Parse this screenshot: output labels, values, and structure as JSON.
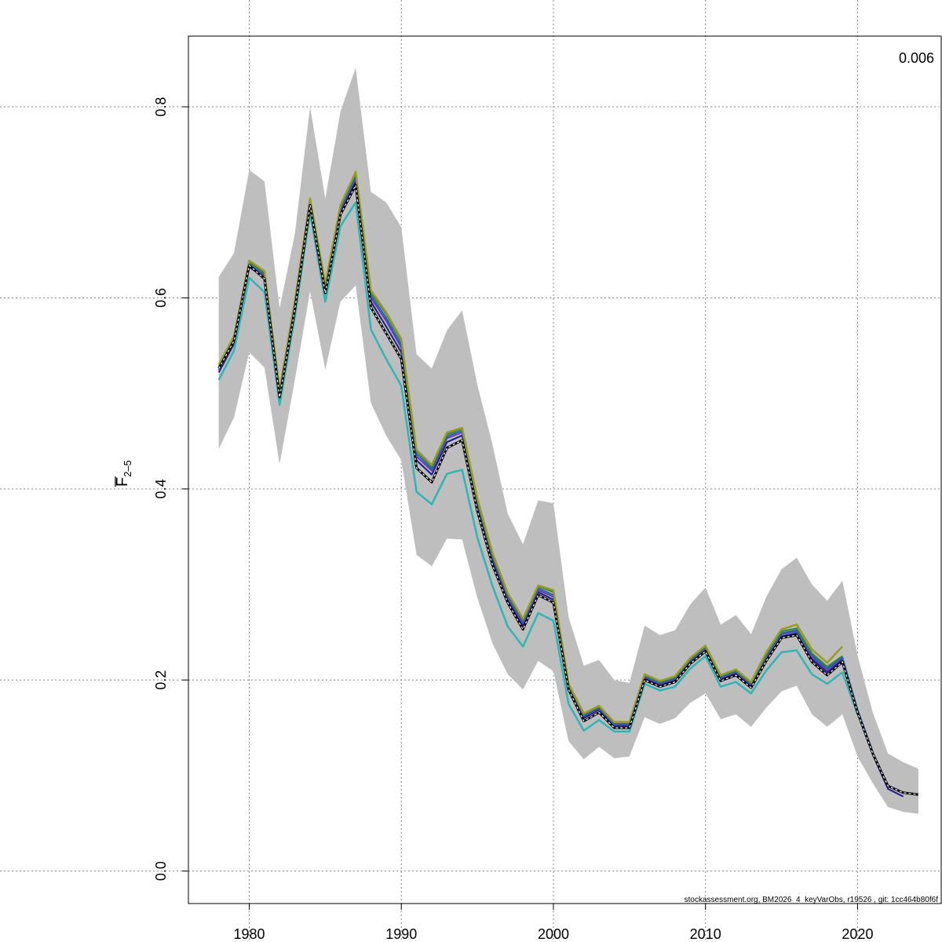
{
  "chart_data": {
    "type": "line",
    "title": "",
    "ylabel_main": "F",
    "ylabel_sub": "2–5",
    "corner_label": "0.006",
    "footnote": "stockassessment.org, BM2026_4_keyVarObs, r19526 , git: 1cc464b80f6f",
    "xlim": [
      1976,
      2025.5
    ],
    "ylim": [
      -0.034,
      0.874
    ],
    "x_ticks": [
      1980,
      1990,
      2000,
      2010,
      2020
    ],
    "y_ticks": [
      0.0,
      0.2,
      0.4,
      0.6,
      0.8
    ],
    "x_tick_labels": [
      "1980",
      "1990",
      "2000",
      "2010",
      "2020"
    ],
    "y_tick_labels": [
      "0.0",
      "0.2",
      "0.4",
      "0.6",
      "0.8"
    ],
    "grid": true,
    "colors": {
      "band": "#bebebe",
      "main": "#000000",
      "grid": "#888888"
    },
    "confidence_band": {
      "years": [
        1978,
        1979,
        1980,
        1981,
        1982,
        1983,
        1984,
        1985,
        1986,
        1987,
        1988,
        1989,
        1990,
        1991,
        1992,
        1993,
        1994,
        1995,
        1996,
        1997,
        1998,
        1999,
        2000,
        2001,
        2002,
        2003,
        2004,
        2005,
        2006,
        2007,
        2008,
        2009,
        2010,
        2011,
        2012,
        2013,
        2014,
        2015,
        2016,
        2017,
        2018,
        2019,
        2020,
        2021,
        2022,
        2023,
        2024
      ],
      "upper": [
        0.622,
        0.647,
        0.734,
        0.722,
        0.589,
        0.667,
        0.8,
        0.704,
        0.795,
        0.841,
        0.711,
        0.7,
        0.674,
        0.541,
        0.526,
        0.566,
        0.587,
        0.509,
        0.446,
        0.374,
        0.342,
        0.388,
        0.385,
        0.266,
        0.215,
        0.221,
        0.2,
        0.197,
        0.257,
        0.247,
        0.252,
        0.279,
        0.297,
        0.258,
        0.268,
        0.248,
        0.287,
        0.316,
        0.328,
        0.3,
        0.283,
        0.304,
        0.226,
        0.166,
        0.123,
        0.114,
        0.107
      ],
      "lower": [
        0.442,
        0.475,
        0.543,
        0.527,
        0.426,
        0.514,
        0.607,
        0.525,
        0.596,
        0.613,
        0.49,
        0.456,
        0.43,
        0.331,
        0.319,
        0.348,
        0.347,
        0.286,
        0.238,
        0.206,
        0.19,
        0.22,
        0.209,
        0.136,
        0.117,
        0.13,
        0.118,
        0.12,
        0.161,
        0.154,
        0.16,
        0.176,
        0.186,
        0.159,
        0.164,
        0.151,
        0.171,
        0.188,
        0.194,
        0.164,
        0.151,
        0.164,
        0.12,
        0.092,
        0.067,
        0.062,
        0.06
      ]
    },
    "series": [
      {
        "key": "main",
        "color": "#000000",
        "width": 3,
        "years": [
          1978,
          1979,
          1980,
          1981,
          1982,
          1983,
          1984,
          1985,
          1986,
          1987,
          1988,
          1989,
          1990,
          1991,
          1992,
          1993,
          1994,
          1995,
          1996,
          1997,
          1998,
          1999,
          2000,
          2001,
          2002,
          2003,
          2004,
          2005,
          2006,
          2007,
          2008,
          2009,
          2010,
          2011,
          2012,
          2013,
          2014,
          2015,
          2016,
          2017,
          2018,
          2019,
          2020,
          2021,
          2022,
          2023,
          2024
        ],
        "values": [
          0.526,
          0.555,
          0.634,
          0.62,
          0.496,
          0.588,
          0.697,
          0.605,
          0.687,
          0.718,
          0.59,
          0.563,
          0.536,
          0.422,
          0.407,
          0.443,
          0.451,
          0.377,
          0.32,
          0.281,
          0.253,
          0.289,
          0.281,
          0.19,
          0.157,
          0.166,
          0.15,
          0.15,
          0.2,
          0.193,
          0.198,
          0.217,
          0.23,
          0.199,
          0.205,
          0.192,
          0.22,
          0.244,
          0.247,
          0.219,
          0.205,
          0.219,
          0.166,
          0.123,
          0.089,
          0.082,
          0.08
        ]
      },
      {
        "key": "r1",
        "color": "#1a1a8c",
        "width": 2,
        "years": [
          1978,
          1979,
          1980,
          1981,
          1982,
          1983,
          1984,
          1985,
          1986,
          1987,
          1988,
          1989,
          1990,
          1991,
          1992,
          1993,
          1994,
          1995,
          1996,
          1997,
          1998,
          1999,
          2000,
          2001,
          2002,
          2003,
          2004,
          2005,
          2006,
          2007,
          2008,
          2009,
          2010,
          2011,
          2012,
          2013,
          2014,
          2015,
          2016,
          2017,
          2018,
          2019,
          2020,
          2021,
          2022,
          2023
        ],
        "values": [
          0.522,
          0.552,
          0.632,
          0.622,
          0.498,
          0.59,
          0.7,
          0.608,
          0.69,
          0.722,
          0.596,
          0.57,
          0.543,
          0.43,
          0.415,
          0.449,
          0.456,
          0.381,
          0.324,
          0.284,
          0.257,
          0.292,
          0.284,
          0.192,
          0.16,
          0.169,
          0.152,
          0.152,
          0.202,
          0.195,
          0.2,
          0.219,
          0.232,
          0.201,
          0.207,
          0.194,
          0.222,
          0.246,
          0.249,
          0.222,
          0.208,
          0.221,
          0.167,
          0.122,
          0.086,
          0.078
        ]
      },
      {
        "key": "r2",
        "color": "#6a3cb3",
        "width": 2,
        "years": [
          1978,
          1979,
          1980,
          1981,
          1982,
          1983,
          1984,
          1985,
          1986,
          1987,
          1988,
          1989,
          1990,
          1991,
          1992,
          1993,
          1994,
          1995,
          1996,
          1997,
          1998,
          1999,
          2000,
          2001,
          2002,
          2003,
          2004,
          2005,
          2006,
          2007,
          2008,
          2009,
          2010,
          2011,
          2012,
          2013,
          2014,
          2015,
          2016,
          2017,
          2018,
          2019,
          2020,
          2021,
          2022
        ],
        "values": [
          0.524,
          0.554,
          0.634,
          0.624,
          0.5,
          0.592,
          0.701,
          0.61,
          0.692,
          0.725,
          0.6,
          0.576,
          0.548,
          0.434,
          0.419,
          0.453,
          0.459,
          0.384,
          0.327,
          0.286,
          0.259,
          0.294,
          0.287,
          0.193,
          0.162,
          0.17,
          0.153,
          0.153,
          0.203,
          0.196,
          0.201,
          0.22,
          0.233,
          0.202,
          0.208,
          0.195,
          0.224,
          0.248,
          0.251,
          0.224,
          0.21,
          0.223,
          0.168,
          0.124,
          0.088
        ]
      },
      {
        "key": "r3",
        "color": "#2166ac",
        "width": 2,
        "years": [
          1978,
          1979,
          1980,
          1981,
          1982,
          1983,
          1984,
          1985,
          1986,
          1987,
          1988,
          1989,
          1990,
          1991,
          1992,
          1993,
          1994,
          1995,
          1996,
          1997,
          1998,
          1999,
          2000,
          2001,
          2002,
          2003,
          2004,
          2005,
          2006,
          2007,
          2008,
          2009,
          2010,
          2011,
          2012,
          2013,
          2014,
          2015,
          2016,
          2017,
          2018,
          2019,
          2020,
          2021
        ],
        "values": [
          0.525,
          0.556,
          0.635,
          0.625,
          0.501,
          0.594,
          0.702,
          0.612,
          0.694,
          0.727,
          0.603,
          0.579,
          0.551,
          0.437,
          0.421,
          0.455,
          0.461,
          0.386,
          0.329,
          0.288,
          0.261,
          0.296,
          0.289,
          0.194,
          0.163,
          0.171,
          0.154,
          0.154,
          0.204,
          0.197,
          0.202,
          0.221,
          0.234,
          0.203,
          0.209,
          0.196,
          0.225,
          0.249,
          0.252,
          0.226,
          0.212,
          0.224,
          0.169,
          0.125
        ]
      },
      {
        "key": "r4",
        "color": "#2ab7b7",
        "width": 2.5,
        "years": [
          1978,
          1979,
          1980,
          1981,
          1982,
          1983,
          1984,
          1985,
          1986,
          1987,
          1988,
          1989,
          1990,
          1991,
          1992,
          1993,
          1994,
          1995,
          1996,
          1997,
          1998,
          1999,
          2000,
          2001,
          2002,
          2003,
          2004,
          2005,
          2006,
          2007,
          2008,
          2009,
          2010,
          2011,
          2012,
          2013,
          2014,
          2015,
          2016,
          2017,
          2018,
          2019,
          2020
        ],
        "values": [
          0.514,
          0.545,
          0.621,
          0.606,
          0.488,
          0.58,
          0.689,
          0.596,
          0.675,
          0.7,
          0.567,
          0.536,
          0.508,
          0.397,
          0.384,
          0.416,
          0.42,
          0.349,
          0.298,
          0.256,
          0.235,
          0.27,
          0.262,
          0.175,
          0.147,
          0.158,
          0.146,
          0.146,
          0.196,
          0.189,
          0.193,
          0.212,
          0.225,
          0.193,
          0.198,
          0.186,
          0.21,
          0.229,
          0.231,
          0.206,
          0.196,
          0.208,
          0.164
        ]
      },
      {
        "key": "r5",
        "color": "#2a8a3c",
        "width": 2,
        "years": [
          1978,
          1979,
          1980,
          1981,
          1982,
          1983,
          1984,
          1985,
          1986,
          1987,
          1988,
          1989,
          1990,
          1991,
          1992,
          1993,
          1994,
          1995,
          1996,
          1997,
          1998,
          1999,
          2000,
          2001,
          2002,
          2003,
          2004,
          2005,
          2006,
          2007,
          2008,
          2009,
          2010,
          2011,
          2012,
          2013,
          2014,
          2015,
          2016,
          2017,
          2018,
          2019
        ],
        "values": [
          0.528,
          0.558,
          0.637,
          0.627,
          0.503,
          0.596,
          0.703,
          0.614,
          0.696,
          0.73,
          0.606,
          0.583,
          0.555,
          0.44,
          0.423,
          0.457,
          0.463,
          0.388,
          0.331,
          0.29,
          0.263,
          0.298,
          0.292,
          0.195,
          0.164,
          0.172,
          0.155,
          0.155,
          0.205,
          0.198,
          0.203,
          0.222,
          0.235,
          0.204,
          0.21,
          0.197,
          0.227,
          0.251,
          0.254,
          0.228,
          0.214,
          0.225
        ]
      },
      {
        "key": "r6",
        "color": "#9b9b1f",
        "width": 2.5,
        "years": [
          1978,
          1979,
          1980,
          1981,
          1982,
          1983,
          1984,
          1985,
          1986,
          1987,
          1988,
          1989,
          1990,
          1991,
          1992,
          1993,
          1994,
          1995,
          1996,
          1997,
          1998,
          1999,
          2000,
          2001,
          2002,
          2003,
          2004,
          2005,
          2006,
          2007,
          2008,
          2009,
          2010,
          2011,
          2012,
          2013,
          2014,
          2015,
          2016,
          2017,
          2018,
          2019
        ],
        "values": [
          0.53,
          0.56,
          0.639,
          0.628,
          0.504,
          0.597,
          0.704,
          0.615,
          0.697,
          0.732,
          0.608,
          0.585,
          0.557,
          0.441,
          0.425,
          0.459,
          0.464,
          0.39,
          0.333,
          0.291,
          0.264,
          0.299,
          0.294,
          0.196,
          0.165,
          0.173,
          0.156,
          0.156,
          0.206,
          0.199,
          0.204,
          0.223,
          0.236,
          0.205,
          0.211,
          0.198,
          0.229,
          0.253,
          0.258,
          0.232,
          0.218,
          0.235
        ]
      }
    ]
  }
}
